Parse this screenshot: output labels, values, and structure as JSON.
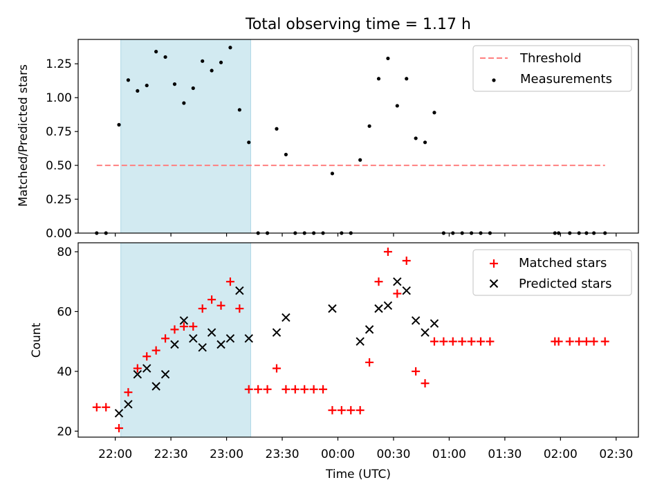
{
  "title": "Total observing time = 1.17 h",
  "colors": {
    "shade": "#add8e6",
    "threshold": "#ff7f7f",
    "measurements": "#000000",
    "matched": "#ff0000",
    "predicted": "#000000"
  },
  "chart_data": [
    {
      "type": "scatter",
      "ylabel": "Matched/Predicted stars",
      "ylim": [
        0,
        1.43
      ],
      "xlim": [
        "21:40",
        "02:42"
      ],
      "y_ticks": [
        "0.00",
        "0.25",
        "0.50",
        "0.75",
        "1.00",
        "1.25"
      ],
      "shaded_region": [
        "22:03",
        "23:13"
      ],
      "legend_position": "top-right",
      "threshold": {
        "name": "Threshold",
        "y": 0.5,
        "x": [
          "21:50",
          "02:24"
        ]
      },
      "series": [
        {
          "name": "Measurements",
          "marker": "dot",
          "points": [
            [
              "21:50",
              0.0
            ],
            [
              "21:55",
              0.0
            ],
            [
              "22:02",
              0.8
            ],
            [
              "22:07",
              1.13
            ],
            [
              "22:12",
              1.05
            ],
            [
              "22:17",
              1.09
            ],
            [
              "22:22",
              1.34
            ],
            [
              "22:27",
              1.3
            ],
            [
              "22:32",
              1.1
            ],
            [
              "22:37",
              0.96
            ],
            [
              "22:42",
              1.07
            ],
            [
              "22:47",
              1.27
            ],
            [
              "22:52",
              1.2
            ],
            [
              "22:57",
              1.26
            ],
            [
              "23:02",
              1.37
            ],
            [
              "23:07",
              0.91
            ],
            [
              "23:12",
              0.67
            ],
            [
              "23:17",
              0.0
            ],
            [
              "23:22",
              0.0
            ],
            [
              "23:27",
              0.77
            ],
            [
              "23:32",
              0.58
            ],
            [
              "23:37",
              0.0
            ],
            [
              "23:42",
              0.0
            ],
            [
              "23:47",
              0.0
            ],
            [
              "23:52",
              0.0
            ],
            [
              "23:57",
              0.44
            ],
            [
              "00:02",
              0.0
            ],
            [
              "00:07",
              0.0
            ],
            [
              "00:12",
              0.54
            ],
            [
              "00:17",
              0.79
            ],
            [
              "00:22",
              1.14
            ],
            [
              "00:27",
              1.29
            ],
            [
              "00:32",
              0.94
            ],
            [
              "00:37",
              1.14
            ],
            [
              "00:42",
              0.7
            ],
            [
              "00:47",
              0.67
            ],
            [
              "00:52",
              0.89
            ],
            [
              "00:57",
              0.0
            ],
            [
              "01:02",
              0.0
            ],
            [
              "01:07",
              0.0
            ],
            [
              "01:12",
              0.0
            ],
            [
              "01:17",
              0.0
            ],
            [
              "01:22",
              0.0
            ],
            [
              "01:57",
              0.0
            ],
            [
              "01:59",
              0.0
            ],
            [
              "02:05",
              0.0
            ],
            [
              "02:10",
              0.0
            ],
            [
              "02:14",
              0.0
            ],
            [
              "02:18",
              0.0
            ],
            [
              "02:24",
              0.0
            ]
          ]
        }
      ]
    },
    {
      "type": "scatter",
      "xlabel": "Time (UTC)",
      "ylabel": "Count",
      "ylim": [
        18,
        83
      ],
      "xlim": [
        "21:40",
        "02:42"
      ],
      "y_ticks": [
        "20",
        "40",
        "60",
        "80"
      ],
      "x_ticks": [
        "22:00",
        "22:30",
        "23:00",
        "23:30",
        "00:00",
        "00:30",
        "01:00",
        "01:30",
        "02:00",
        "02:30"
      ],
      "shaded_region": [
        "22:03",
        "23:13"
      ],
      "legend_position": "top-right",
      "series": [
        {
          "name": "Matched stars",
          "marker": "plus",
          "points": [
            [
              "21:50",
              28
            ],
            [
              "21:55",
              28
            ],
            [
              "22:02",
              21
            ],
            [
              "22:07",
              33
            ],
            [
              "22:12",
              41
            ],
            [
              "22:17",
              45
            ],
            [
              "22:22",
              47
            ],
            [
              "22:27",
              51
            ],
            [
              "22:32",
              54
            ],
            [
              "22:37",
              55
            ],
            [
              "22:42",
              55
            ],
            [
              "22:47",
              61
            ],
            [
              "22:52",
              64
            ],
            [
              "22:57",
              62
            ],
            [
              "23:02",
              70
            ],
            [
              "23:07",
              61
            ],
            [
              "23:12",
              34
            ],
            [
              "23:17",
              34
            ],
            [
              "23:22",
              34
            ],
            [
              "23:27",
              41
            ],
            [
              "23:32",
              34
            ],
            [
              "23:37",
              34
            ],
            [
              "23:42",
              34
            ],
            [
              "23:47",
              34
            ],
            [
              "23:52",
              34
            ],
            [
              "23:57",
              27
            ],
            [
              "00:02",
              27
            ],
            [
              "00:07",
              27
            ],
            [
              "00:12",
              27
            ],
            [
              "00:17",
              43
            ],
            [
              "00:22",
              70
            ],
            [
              "00:27",
              80
            ],
            [
              "00:32",
              66
            ],
            [
              "00:37",
              77
            ],
            [
              "00:42",
              40
            ],
            [
              "00:47",
              36
            ],
            [
              "00:52",
              50
            ],
            [
              "00:57",
              50
            ],
            [
              "01:02",
              50
            ],
            [
              "01:07",
              50
            ],
            [
              "01:12",
              50
            ],
            [
              "01:17",
              50
            ],
            [
              "01:22",
              50
            ],
            [
              "01:57",
              50
            ],
            [
              "01:59",
              50
            ],
            [
              "02:05",
              50
            ],
            [
              "02:10",
              50
            ],
            [
              "02:14",
              50
            ],
            [
              "02:18",
              50
            ],
            [
              "02:24",
              50
            ]
          ]
        },
        {
          "name": "Predicted stars",
          "marker": "x",
          "points": [
            [
              "22:02",
              26
            ],
            [
              "22:07",
              29
            ],
            [
              "22:12",
              39
            ],
            [
              "22:17",
              41
            ],
            [
              "22:22",
              35
            ],
            [
              "22:27",
              39
            ],
            [
              "22:32",
              49
            ],
            [
              "22:37",
              57
            ],
            [
              "22:42",
              51
            ],
            [
              "22:47",
              48
            ],
            [
              "22:52",
              53
            ],
            [
              "22:57",
              49
            ],
            [
              "23:02",
              51
            ],
            [
              "23:07",
              67
            ],
            [
              "23:12",
              51
            ],
            [
              "23:27",
              53
            ],
            [
              "23:32",
              58
            ],
            [
              "23:57",
              61
            ],
            [
              "00:12",
              50
            ],
            [
              "00:17",
              54
            ],
            [
              "00:22",
              61
            ],
            [
              "00:27",
              62
            ],
            [
              "00:32",
              70
            ],
            [
              "00:37",
              67
            ],
            [
              "00:42",
              57
            ],
            [
              "00:47",
              53
            ],
            [
              "00:52",
              56
            ]
          ]
        }
      ]
    }
  ]
}
